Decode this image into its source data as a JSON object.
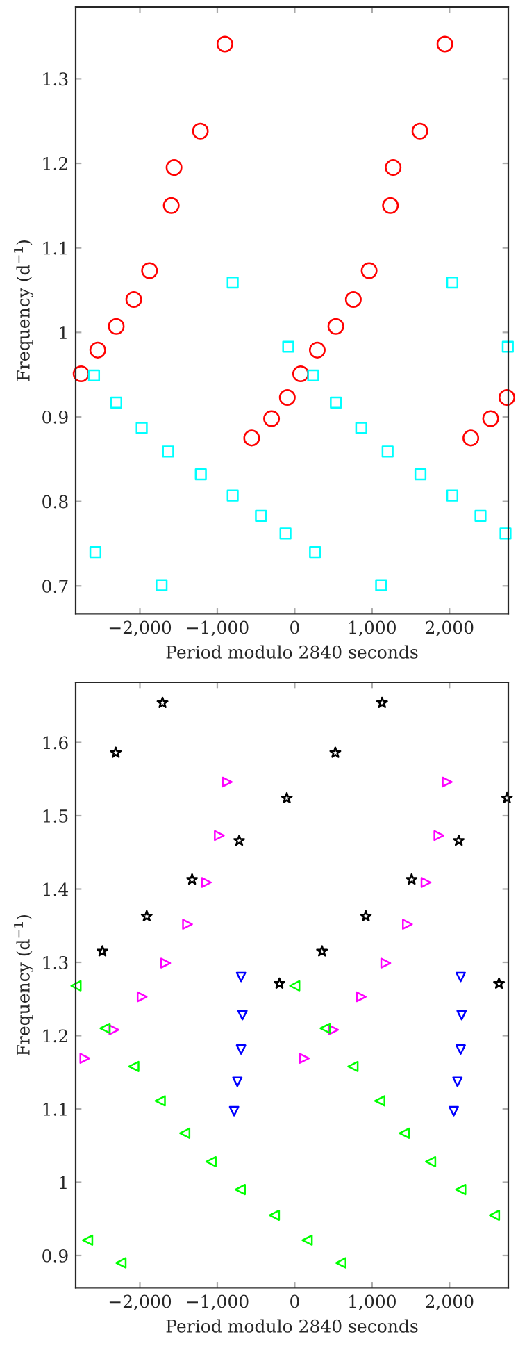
{
  "chart_data": [
    {
      "type": "scatter",
      "xlabel": "Period modulo 2840 seconds",
      "ylabel": "Frequency (d$^{−1}$)",
      "xlim": [
        -2830,
        2760
      ],
      "ylim": [
        0.667,
        1.385
      ],
      "xticks": [
        {
          "value": -2000,
          "label": "−2,000"
        },
        {
          "value": -1000,
          "label": "−1,000"
        },
        0,
        {
          "value": 1000,
          "label": "1,000"
        },
        {
          "value": 2000,
          "label": "2,000"
        }
      ],
      "yticks": [
        0.7,
        0.8,
        0.9,
        1,
        1.1,
        1.2,
        1.3
      ],
      "series": [
        {
          "color": "#ff0000",
          "marker": "circle",
          "x": [
            -902,
            -1219,
            -1559,
            -1595,
            -1876,
            -2079,
            -2306,
            -2545,
            -2760,
            1941,
            1618,
            1272,
            1237,
            962,
            758,
            532,
            292,
            77,
            -95,
            -299,
            -556,
            2742,
            2532,
            2276
          ],
          "values": [
            1.341,
            1.238,
            1.195,
            1.15,
            1.073,
            1.039,
            1.007,
            0.979,
            0.951,
            1.341,
            1.238,
            1.195,
            1.15,
            1.073,
            1.039,
            1.007,
            0.979,
            0.951,
            0.923,
            0.898,
            0.875,
            0.923,
            0.898,
            0.875
          ]
        },
        {
          "color": "#00ffff",
          "marker": "square",
          "x": [
            -2593,
            -2306,
            -1977,
            -1636,
            -1213,
            -801,
            -436,
            -119,
            263,
            -84,
            239,
            532,
            860,
            1201,
            1625,
            2037,
            2401,
            2724,
            2754,
            -2575,
            -1720,
            1117,
            -801,
            2037
          ],
          "values": [
            0.949,
            0.917,
            0.887,
            0.859,
            0.832,
            0.807,
            0.783,
            0.762,
            0.74,
            0.983,
            0.949,
            0.917,
            0.887,
            0.859,
            0.832,
            0.807,
            0.783,
            0.762,
            0.983,
            0.74,
            0.701,
            0.701,
            1.059,
            1.059
          ]
        }
      ]
    },
    {
      "type": "scatter",
      "xlabel": "Period modulo 2840 seconds",
      "ylabel": "Frequency (d$^{−1}$)",
      "xlim": [
        -2830,
        2760
      ],
      "ylim": [
        0.856,
        1.682
      ],
      "xticks": [
        {
          "value": -2000,
          "label": "−2,000"
        },
        {
          "value": -1000,
          "label": "−1,000"
        },
        0,
        {
          "value": 1000,
          "label": "1,000"
        },
        {
          "value": 2000,
          "label": "2,000"
        }
      ],
      "yticks": [
        0.9,
        1,
        1.1,
        1.2,
        1.3,
        1.4,
        1.5,
        1.6
      ],
      "series": [
        {
          "color": "#000000",
          "marker": "star",
          "x": [
            -1708,
            -2312,
            -102,
            -717,
            -1326,
            -1912,
            -2485,
            -197,
            1129,
            525,
            2742,
            2120,
            1511,
            919,
            353,
            2640
          ],
          "values": [
            1.654,
            1.586,
            1.524,
            1.466,
            1.413,
            1.363,
            1.315,
            1.271,
            1.654,
            1.586,
            1.524,
            1.466,
            1.413,
            1.363,
            1.315,
            1.271
          ]
        },
        {
          "color": "#ff00ff",
          "marker": "triangle-right",
          "x": [
            -872,
            -974,
            -1141,
            -1385,
            -1667,
            -1971,
            -2335,
            -2711,
            1971,
            1864,
            1697,
            1457,
            1177,
            860,
            502,
            125
          ],
          "values": [
            1.546,
            1.473,
            1.409,
            1.352,
            1.299,
            1.253,
            1.208,
            1.169,
            1.546,
            1.473,
            1.409,
            1.352,
            1.299,
            1.253,
            1.208,
            1.169
          ]
        },
        {
          "color": "#0000ff",
          "marker": "triangle-down",
          "x": [
            -693,
            -675,
            -693,
            -741,
            -783,
            2145,
            2157,
            2145,
            2103,
            2055
          ],
          "values": [
            1.28,
            1.228,
            1.181,
            1.137,
            1.097,
            1.28,
            1.228,
            1.181,
            1.137,
            1.097
          ]
        },
        {
          "color": "#00ff00",
          "marker": "triangle-left",
          "x": [
            -2826,
            0,
            -2450,
            -2079,
            -1738,
            -1421,
            -1081,
            -704,
            -263,
            161,
            597,
            394,
            753,
            1099,
            1416,
            1756,
            2145,
            2581,
            -2676,
            -2245
          ],
          "values": [
            1.268,
            1.268,
            1.21,
            1.158,
            1.111,
            1.067,
            1.028,
            0.99,
            0.955,
            0.921,
            0.89,
            1.21,
            1.158,
            1.111,
            1.067,
            1.028,
            0.99,
            0.955,
            0.921,
            0.89
          ]
        }
      ]
    }
  ]
}
